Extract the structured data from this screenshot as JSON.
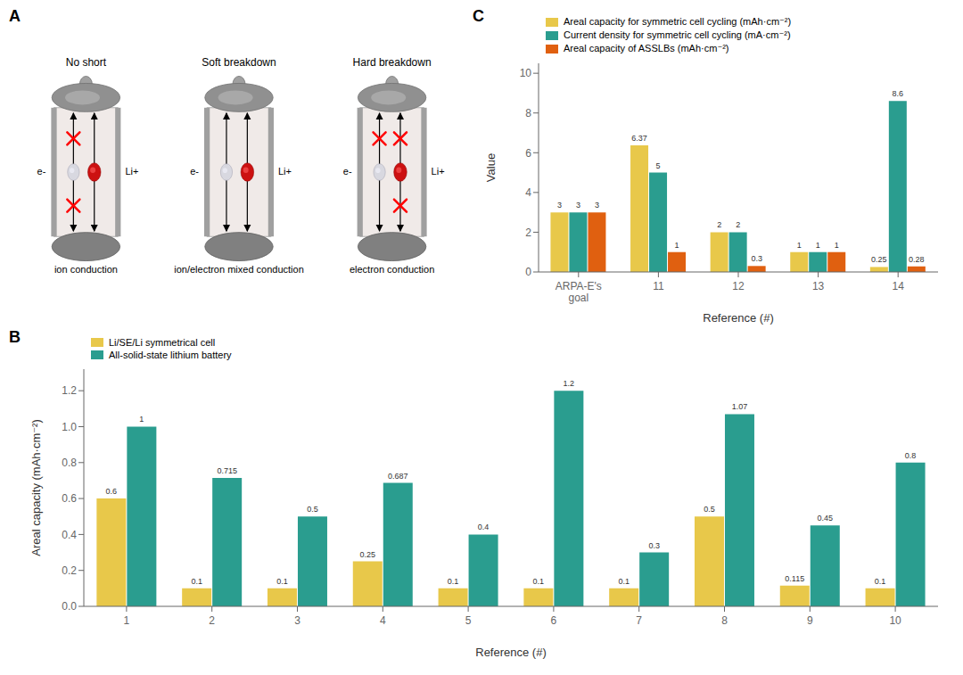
{
  "chart_data": [
    {
      "type": "schematic",
      "panel": "A",
      "titles": [
        "No short",
        "Soft breakdown",
        "Hard breakdown"
      ],
      "captions": [
        "ion conduction",
        "ion/electron mixed conduction",
        "electron conduction"
      ],
      "electron_label": "e-",
      "ion_label": "Li+",
      "electron_blocked_top": [
        true,
        false,
        true
      ],
      "electron_blocked_bottom": [
        true,
        false,
        false
      ],
      "ion_blocked": [
        false,
        false,
        true
      ]
    },
    {
      "type": "bar",
      "panel": "C",
      "xlabel": "Reference (#)",
      "ylabel": "Value",
      "categories": [
        "ARPA-E's\ngoal",
        "11",
        "12",
        "13",
        "14"
      ],
      "series": [
        {
          "name": "Areal capacity for symmetric cell cycling (mAh·cm⁻²)",
          "color": "#E8C84A",
          "values": [
            3,
            6.37,
            2,
            1,
            0.25
          ]
        },
        {
          "name": "Current density for symmetric cell cycling (mA·cm⁻²)",
          "color": "#2A9D8F",
          "values": [
            3,
            5,
            2,
            1,
            8.6
          ]
        },
        {
          "name": "Areal capacity of ASSLBs (mAh·cm⁻²)",
          "color": "#E06010",
          "values": [
            3,
            1,
            0.3,
            1,
            0.28
          ]
        }
      ],
      "ylim": [
        0,
        10.5
      ],
      "yticks": [
        0,
        2,
        4,
        6,
        8,
        10
      ],
      "legend": "upper left",
      "data_labels": true,
      "grid": false
    },
    {
      "type": "bar",
      "panel": "B",
      "xlabel": "Reference (#)",
      "ylabel": "Areal capacity (mAh·cm⁻²)",
      "categories": [
        "1",
        "2",
        "3",
        "4",
        "5",
        "6",
        "7",
        "8",
        "9",
        "10"
      ],
      "series": [
        {
          "name": "Li/SE/Li symmetrical cell",
          "color": "#E8C84A",
          "values": [
            0.6,
            0.1,
            0.1,
            0.25,
            0.1,
            0.1,
            0.1,
            0.5,
            0.115,
            0.1
          ]
        },
        {
          "name": "All-solid-state lithium battery",
          "color": "#2A9D8F",
          "values": [
            1.0,
            0.715,
            0.5,
            0.687,
            0.4,
            1.2,
            0.3,
            1.07,
            0.45,
            0.8
          ]
        }
      ],
      "ylim": [
        0,
        1.32
      ],
      "yticks": [
        {
          "value": 0.0,
          "label": "0.0"
        },
        0.2,
        0.4,
        0.6,
        0.8,
        {
          "value": 1.0,
          "label": "1.0"
        },
        1.2
      ],
      "legend": "upper left",
      "data_labels": true,
      "grid": false
    }
  ]
}
